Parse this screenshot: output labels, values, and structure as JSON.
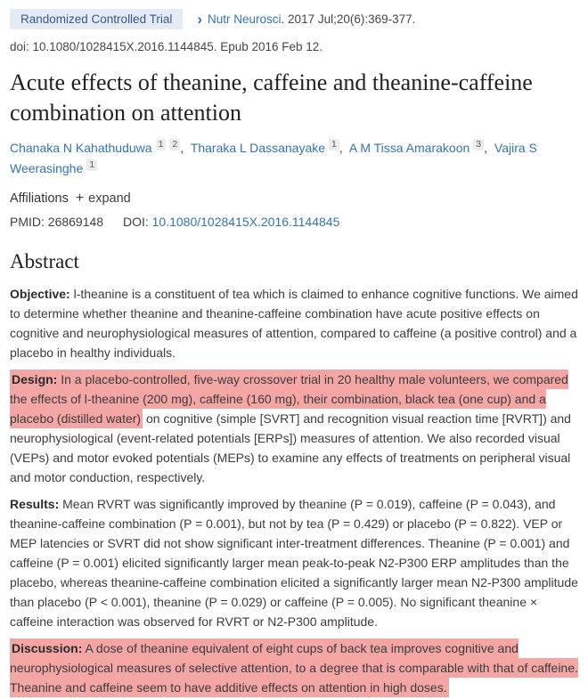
{
  "colors": {
    "highlight": "#f3a6a4",
    "link_blue": "#3273b5",
    "badge_background": "#e4ebf5",
    "badge_text": "#35598e",
    "superscript_background": "#ececec"
  },
  "header": {
    "publication_type": "Randomized Controlled Trial",
    "chevron": "›",
    "journal": "Nutr Neurosci",
    "citation_suffix": ". 2017 Jul;20(6):369-377.",
    "doi_line": "doi: 10.1080/1028415X.2016.1144845. Epub 2016 Feb 12."
  },
  "title": "Acute effects of theanine, caffeine and theanine-caffeine combination on attention",
  "authors_separator": ",",
  "authors": [
    {
      "name": "Chanaka N Kahathuduwa",
      "sups": [
        "1",
        "2"
      ]
    },
    {
      "name": "Tharaka L Dassanayake",
      "sups": [
        "1"
      ]
    },
    {
      "name": "A M Tissa Amarakoon",
      "sups": [
        "3"
      ]
    },
    {
      "name": "Vajira S Weerasinghe",
      "sups": [
        "1"
      ]
    }
  ],
  "affiliations": {
    "label": "Affiliations",
    "plus": "+",
    "expand": "expand"
  },
  "identifiers": {
    "pmid_label": "PMID:",
    "pmid": "26869148",
    "doi_label": "DOI:",
    "doi": "10.1080/1028415X.2016.1144845"
  },
  "abstract": {
    "heading": "Abstract",
    "sections": [
      {
        "label": "Objective:",
        "text": " l-theanine is a constituent of tea which is claimed to enhance cognitive functions. We aimed to determine whether theanine and theanine-caffeine combination have acute positive effects on cognitive and neurophysiological measures of attention, compared to caffeine (a positive control) and a placebo in healthy individuals."
      },
      {
        "label": "Design:",
        "highlight": " In a placebo-controlled, five-way crossover trial in 20 healthy male volunteers, we compared the effects of l-theanine (200 mg), caffeine (160 mg), their combination, black tea (one cup) and a placebo (distilled water)",
        "text": " on cognitive (simple [SVRT] and recognition visual reaction time [RVRT]) and neurophysiological (event-related potentials [ERPs]) measures of attention. We also recorded visual (VEPs) and motor evoked potentials (MEPs) to examine any effects of treatments on peripheral visual and motor conduction, respectively."
      },
      {
        "label": "Results:",
        "text": " Mean RVRT was significantly improved by theanine (P = 0.019), caffeine (P = 0.043), and theanine-caffeine combination (P = 0.001), but not by tea (P = 0.429) or placebo (P = 0.822). VEP or MEP latencies or SVRT did not show significant inter-treatment differences. Theanine (P = 0.001) and caffeine (P = 0.001) elicited significantly larger mean peak-to-peak N2-P300 ERP amplitudes than the placebo, whereas theanine-caffeine combination elicited a significantly larger mean N2-P300 amplitude than placebo (P < 0.001), theanine (P = 0.029) or caffeine (P = 0.005). No significant theanine × caffeine interaction was observed for RVRT or N2-P300 amplitude."
      },
      {
        "label": "Discussion:",
        "highlight": " A dose of theanine equivalent of eight cups of back tea improves cognitive and neurophysiological measures of selective attention, to a degree that is comparable with that of caffeine. Theanine and caffeine seem to have additive effects on attention in high doses."
      }
    ]
  }
}
